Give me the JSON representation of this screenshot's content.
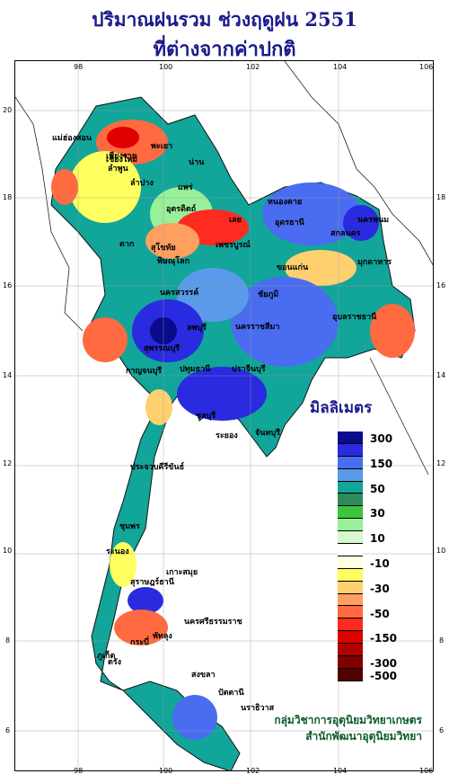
{
  "title_line1": "ปริมาณฝนรวม ช่วงฤดูฝน 2551",
  "title_line2": "ที่ต่างจากค่าปกติ",
  "axis": {
    "top_ticks": [
      "98",
      "100",
      "102",
      "104",
      "106"
    ],
    "bottom_ticks": [
      "98",
      "100",
      "102",
      "104",
      "106"
    ],
    "left_ticks": [
      "20",
      "18",
      "16",
      "14",
      "12",
      "10",
      "8",
      "6"
    ],
    "right_ticks": [
      "18",
      "16",
      "14",
      "12",
      "10",
      "8",
      "6"
    ]
  },
  "legend": {
    "title": "มิลลิเมตร",
    "classes": [
      {
        "label": "300",
        "color": "#0a0a8c"
      },
      {
        "label": "",
        "color": "#2a2ae0"
      },
      {
        "label": "150",
        "color": "#4a6cf0"
      },
      {
        "label": "",
        "color": "#5a9ae8"
      },
      {
        "label": "50",
        "color": "#12a59a"
      },
      {
        "label": "",
        "color": "#2e8b57"
      },
      {
        "label": "30",
        "color": "#3cc43c"
      },
      {
        "label": "",
        "color": "#98f098"
      },
      {
        "label": "10",
        "color": "#d8f8d0"
      },
      {
        "label": "",
        "color": "#ffffff"
      },
      {
        "label": "-10",
        "color": "#ffffe0"
      },
      {
        "label": "",
        "color": "#ffff60"
      },
      {
        "label": "-30",
        "color": "#ffd070"
      },
      {
        "label": "",
        "color": "#ffa060"
      },
      {
        "label": "-50",
        "color": "#ff6a40"
      },
      {
        "label": "",
        "color": "#ff2a20"
      },
      {
        "label": "-150",
        "color": "#e00000"
      },
      {
        "label": "",
        "color": "#b00000"
      },
      {
        "label": "-300",
        "color": "#800000"
      },
      {
        "label": "-500",
        "color": "#500000"
      }
    ]
  },
  "credit_line1": "กลุ่มวิชาการอุตุนิยมวิทยาเกษตร",
  "credit_line2": "สำนักพัฒนาอุตุนิยมวิทยา",
  "places": [
    "เชียงราย",
    "แม่ฮ่องสอน",
    "เชียงใหม่",
    "ลำพูน",
    "ลำปาง",
    "พะเยา",
    "น่าน",
    "แพร่",
    "อุตรดิตถ์",
    "ตาก",
    "สุโขทัย",
    "พิษณุโลก",
    "เลย",
    "หนองคาย",
    "อุดรธานี",
    "นครพนม",
    "สกลนคร",
    "มุกดาหาร",
    "ขอนแก่น",
    "ชัยภูมิ",
    "นครสวรรค์",
    "นครราชสีมา",
    "อุบลราชธานี",
    "ลพบุรี",
    "กาญจนบุรี",
    "สุพรรณบุรี",
    "ปทุมธานี",
    "ชลบุรี",
    "ระยอง",
    "จันทบุรี",
    "ปราจีนบุรี",
    "ประจวบคีรีขันธ์",
    "ชุมพร",
    "ระนอง",
    "สุราษฎร์ธานี",
    "นครศรีธรรมราช",
    "ภูเก็ต",
    "กระบี่",
    "ตรัง",
    "พัทลุง",
    "สงขลา",
    "ปัตตานี",
    "นราธิวาส",
    "เกาะสมุย",
    "เพชรบูรณ์"
  ]
}
